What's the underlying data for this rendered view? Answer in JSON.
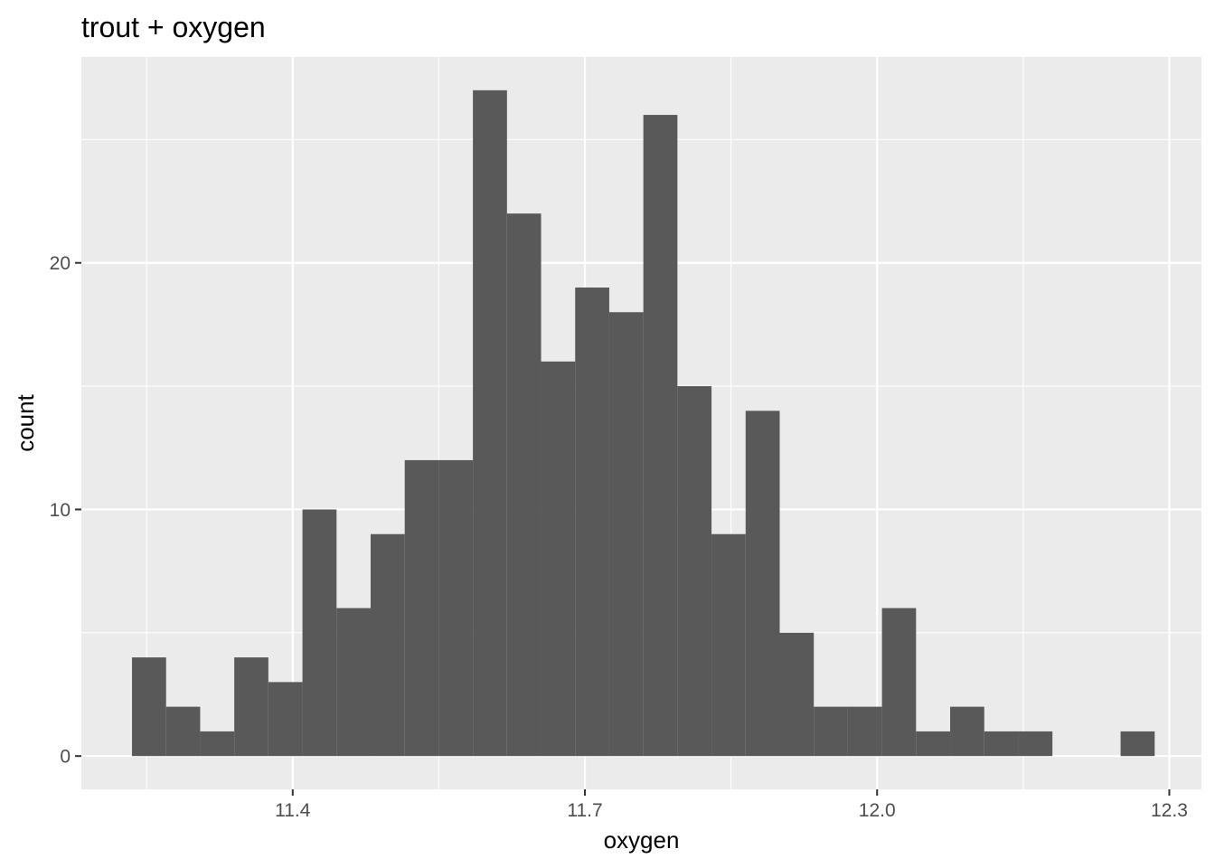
{
  "chart_data": {
    "type": "bar",
    "title": "trout + oxygen",
    "xlabel": "oxygen",
    "ylabel": "count",
    "bin_width": 0.035,
    "bins": [
      {
        "x_start": 11.235,
        "x_end": 11.27,
        "count": 4
      },
      {
        "x_start": 11.27,
        "x_end": 11.305,
        "count": 2
      },
      {
        "x_start": 11.305,
        "x_end": 11.34,
        "count": 1
      },
      {
        "x_start": 11.34,
        "x_end": 11.375,
        "count": 4
      },
      {
        "x_start": 11.375,
        "x_end": 11.41,
        "count": 3
      },
      {
        "x_start": 11.41,
        "x_end": 11.445,
        "count": 10
      },
      {
        "x_start": 11.445,
        "x_end": 11.48,
        "count": 6
      },
      {
        "x_start": 11.48,
        "x_end": 11.515,
        "count": 9
      },
      {
        "x_start": 11.515,
        "x_end": 11.55,
        "count": 12
      },
      {
        "x_start": 11.55,
        "x_end": 11.585,
        "count": 12
      },
      {
        "x_start": 11.585,
        "x_end": 11.62,
        "count": 27
      },
      {
        "x_start": 11.62,
        "x_end": 11.655,
        "count": 22
      },
      {
        "x_start": 11.655,
        "x_end": 11.69,
        "count": 16
      },
      {
        "x_start": 11.69,
        "x_end": 11.725,
        "count": 19
      },
      {
        "x_start": 11.725,
        "x_end": 11.76,
        "count": 18
      },
      {
        "x_start": 11.76,
        "x_end": 11.795,
        "count": 26
      },
      {
        "x_start": 11.795,
        "x_end": 11.83,
        "count": 15
      },
      {
        "x_start": 11.83,
        "x_end": 11.865,
        "count": 9
      },
      {
        "x_start": 11.865,
        "x_end": 11.9,
        "count": 14
      },
      {
        "x_start": 11.9,
        "x_end": 11.935,
        "count": 5
      },
      {
        "x_start": 11.935,
        "x_end": 11.97,
        "count": 2
      },
      {
        "x_start": 11.97,
        "x_end": 12.005,
        "count": 2
      },
      {
        "x_start": 12.005,
        "x_end": 12.04,
        "count": 6
      },
      {
        "x_start": 12.04,
        "x_end": 12.075,
        "count": 1
      },
      {
        "x_start": 12.075,
        "x_end": 12.11,
        "count": 2
      },
      {
        "x_start": 12.11,
        "x_end": 12.145,
        "count": 1
      },
      {
        "x_start": 12.145,
        "x_end": 12.18,
        "count": 1
      },
      {
        "x_start": 12.18,
        "x_end": 12.215,
        "count": 0
      },
      {
        "x_start": 12.215,
        "x_end": 12.25,
        "count": 0
      },
      {
        "x_start": 12.25,
        "x_end": 12.285,
        "count": 1
      }
    ],
    "xlim": [
      11.183,
      12.333
    ],
    "ylim": [
      -1.35,
      28.35
    ],
    "x_ticks": [
      {
        "value": 11.4,
        "label": "11.4"
      },
      {
        "value": 11.7,
        "label": "11.7"
      },
      {
        "value": 12.0,
        "label": "12.0"
      },
      {
        "value": 12.3,
        "label": "12.3"
      }
    ],
    "x_minor_ticks": [
      11.25,
      11.55,
      11.85,
      12.15
    ],
    "y_ticks": [
      {
        "value": 0,
        "label": "0"
      },
      {
        "value": 10,
        "label": "10"
      },
      {
        "value": 20,
        "label": "20"
      }
    ],
    "y_minor_ticks": [
      5,
      15,
      25
    ],
    "grid": true,
    "legend": "none",
    "colors": {
      "panel_background": "#ebebeb",
      "grid_major": "#ffffff",
      "grid_minor": "#ffffff",
      "bar_fill": "#595959",
      "tick_color": "#333333",
      "tick_label_color": "#4d4d4d"
    }
  }
}
